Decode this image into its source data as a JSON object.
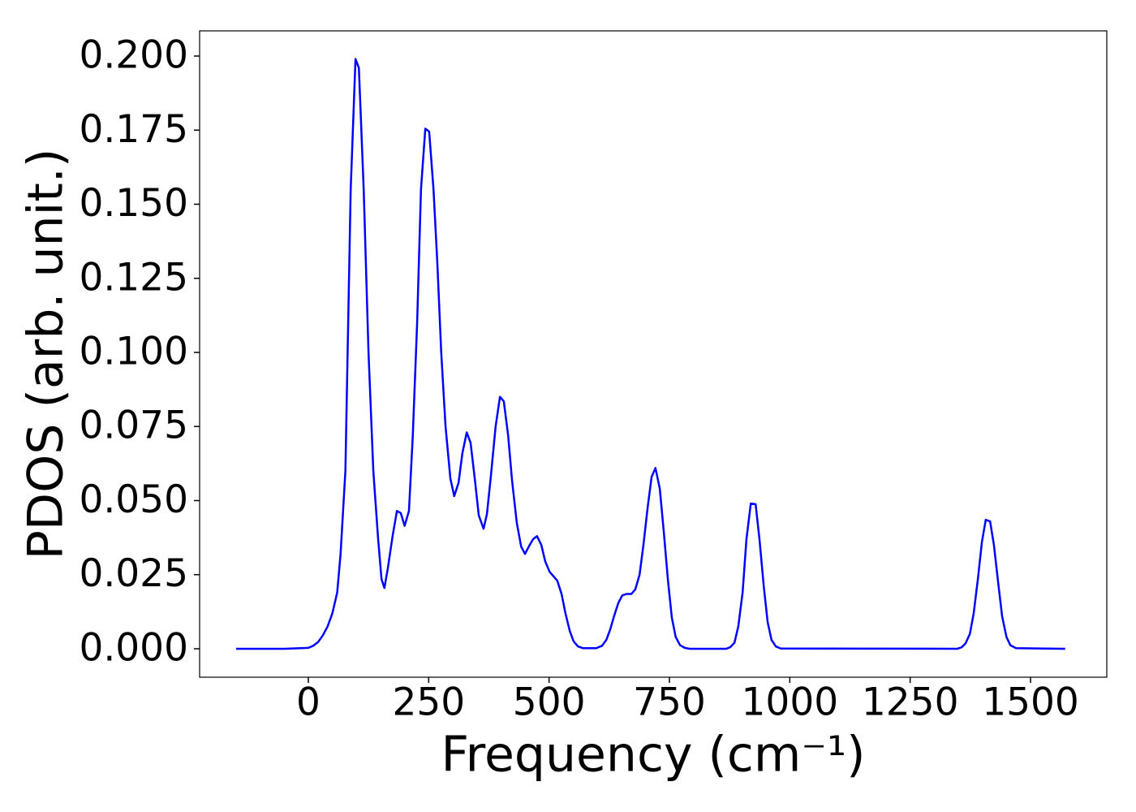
{
  "chart_data": {
    "type": "line",
    "xlabel": "Frequency (cm⁻¹)",
    "ylabel": "PDOS (arb. unit.)",
    "x": [
      -150,
      -100,
      -50,
      0,
      10,
      20,
      30,
      40,
      50,
      60,
      67,
      77,
      88,
      98,
      105,
      115,
      125,
      135,
      145,
      152,
      158,
      165,
      175,
      184,
      192,
      200,
      209,
      217,
      226,
      234,
      243,
      251,
      260,
      268,
      276,
      285,
      295,
      303,
      312,
      320,
      329,
      337,
      346,
      354,
      364,
      371,
      379,
      389,
      398,
      406,
      415,
      423,
      433,
      442,
      450,
      458,
      467,
      475,
      484,
      492,
      501,
      509,
      517,
      526,
      534,
      543,
      551,
      560,
      570,
      598,
      610,
      619,
      627,
      635,
      644,
      652,
      661,
      671,
      679,
      688,
      696,
      705,
      713,
      721,
      730,
      738,
      747,
      755,
      763,
      772,
      782,
      792,
      868,
      876,
      885,
      893,
      902,
      910,
      919,
      929,
      937,
      946,
      954,
      962,
      971,
      981,
      1348,
      1357,
      1365,
      1374,
      1382,
      1391,
      1399,
      1407,
      1416,
      1424,
      1433,
      1441,
      1450,
      1458,
      1470,
      1572
    ],
    "series": [
      {
        "color": "#0000ff",
        "values": [
          0,
          0,
          0,
          0.0003,
          0.001,
          0.0022,
          0.0045,
          0.0075,
          0.012,
          0.019,
          0.032,
          0.06,
          0.155,
          0.199,
          0.196,
          0.155,
          0.1,
          0.06,
          0.037,
          0.0235,
          0.0205,
          0.027,
          0.038,
          0.0465,
          0.0458,
          0.0415,
          0.0465,
          0.072,
          0.11,
          0.155,
          0.1755,
          0.1745,
          0.155,
          0.13,
          0.1,
          0.075,
          0.0575,
          0.0515,
          0.056,
          0.066,
          0.073,
          0.0695,
          0.057,
          0.045,
          0.0405,
          0.0455,
          0.058,
          0.075,
          0.085,
          0.0835,
          0.072,
          0.057,
          0.0425,
          0.0345,
          0.032,
          0.0345,
          0.037,
          0.038,
          0.035,
          0.0295,
          0.026,
          0.0245,
          0.023,
          0.0185,
          0.012,
          0.006,
          0.0025,
          0.0008,
          0.0002,
          0.0002,
          0.001,
          0.003,
          0.0065,
          0.011,
          0.0155,
          0.018,
          0.0185,
          0.0185,
          0.02,
          0.025,
          0.035,
          0.048,
          0.058,
          0.061,
          0.054,
          0.04,
          0.023,
          0.0105,
          0.004,
          0.0012,
          0.0003,
          0,
          0,
          0.0005,
          0.002,
          0.0075,
          0.019,
          0.037,
          0.049,
          0.0488,
          0.037,
          0.021,
          0.009,
          0.003,
          0.0008,
          0.0001,
          0,
          0.0005,
          0.0018,
          0.005,
          0.012,
          0.024,
          0.036,
          0.0435,
          0.043,
          0.035,
          0.022,
          0.011,
          0.004,
          0.0012,
          0.0002,
          0
        ]
      }
    ],
    "xlim": [
      -225.8,
      1658.4
    ],
    "ylim": [
      -0.0096,
      0.2085
    ],
    "xticks": [
      0,
      250,
      500,
      750,
      1000,
      1250,
      1500
    ],
    "yticks": [
      {
        "value": 0,
        "label": "0.000"
      },
      {
        "value": 0.025,
        "label": "0.025"
      },
      {
        "value": 0.05,
        "label": "0.050"
      },
      {
        "value": 0.075,
        "label": "0.075"
      },
      {
        "value": 0.1,
        "label": "0.100"
      },
      {
        "value": 0.125,
        "label": "0.125"
      },
      {
        "value": 0.15,
        "label": "0.150"
      },
      {
        "value": 0.175,
        "label": "0.175"
      },
      {
        "value": 0.2,
        "label": "0.200"
      }
    ],
    "grid": false
  }
}
